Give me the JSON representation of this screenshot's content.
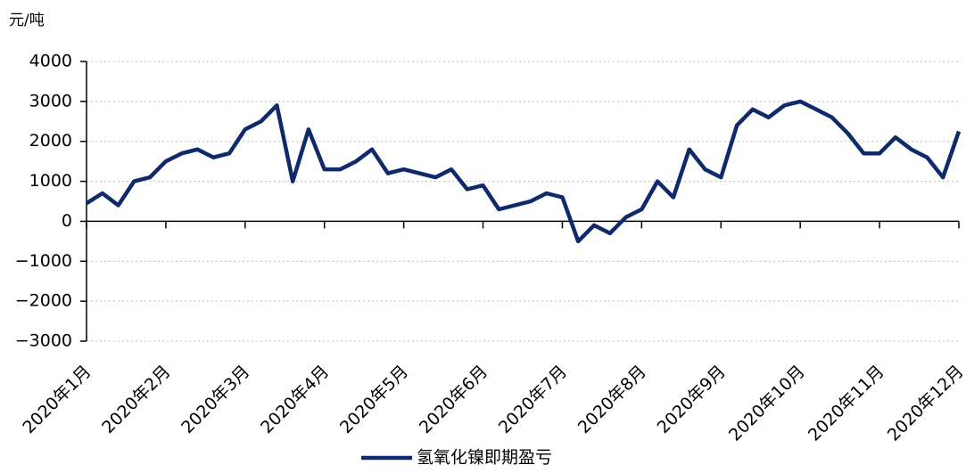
{
  "chart_data": {
    "type": "line",
    "y_unit_label": "元/吨",
    "categories": [
      "2020年1月",
      null,
      null,
      null,
      null,
      "2020年2月",
      null,
      null,
      null,
      null,
      "2020年3月",
      null,
      null,
      null,
      null,
      "2020年4月",
      null,
      null,
      null,
      null,
      "2020年5月",
      null,
      null,
      null,
      null,
      "2020年6月",
      null,
      null,
      null,
      null,
      "2020年7月",
      null,
      null,
      null,
      null,
      "2020年8月",
      null,
      null,
      null,
      null,
      "2020年9月",
      null,
      null,
      null,
      null,
      "2020年10月",
      null,
      null,
      null,
      null,
      "2020年11月",
      null,
      null,
      null,
      null,
      "2020年12月"
    ],
    "series": [
      {
        "name": "氢氧化镍即期盈亏",
        "color": "#0f2a6b",
        "values": [
          450,
          700,
          400,
          1000,
          1100,
          1500,
          1700,
          1800,
          1600,
          1700,
          2300,
          2500,
          2900,
          1000,
          2300,
          1300,
          1300,
          1500,
          1800,
          1200,
          1300,
          1200,
          1100,
          1300,
          800,
          900,
          300,
          400,
          500,
          700,
          600,
          -500,
          -100,
          -300,
          100,
          300,
          1000,
          600,
          1800,
          1300,
          1100,
          2400,
          2800,
          2600,
          2900,
          3000,
          2800,
          2600,
          2200,
          1700,
          1700,
          2100,
          1800,
          1600,
          1100,
          2250
        ]
      }
    ],
    "ylim": [
      -3000,
      4000
    ],
    "yticks": [
      {
        "value": -3000,
        "label": "−3000"
      },
      {
        "value": -2000,
        "label": "−2000"
      },
      {
        "value": -1000,
        "label": "−1000"
      },
      0,
      1000,
      2000,
      3000,
      4000
    ],
    "grid": true,
    "legend": "bottom"
  }
}
